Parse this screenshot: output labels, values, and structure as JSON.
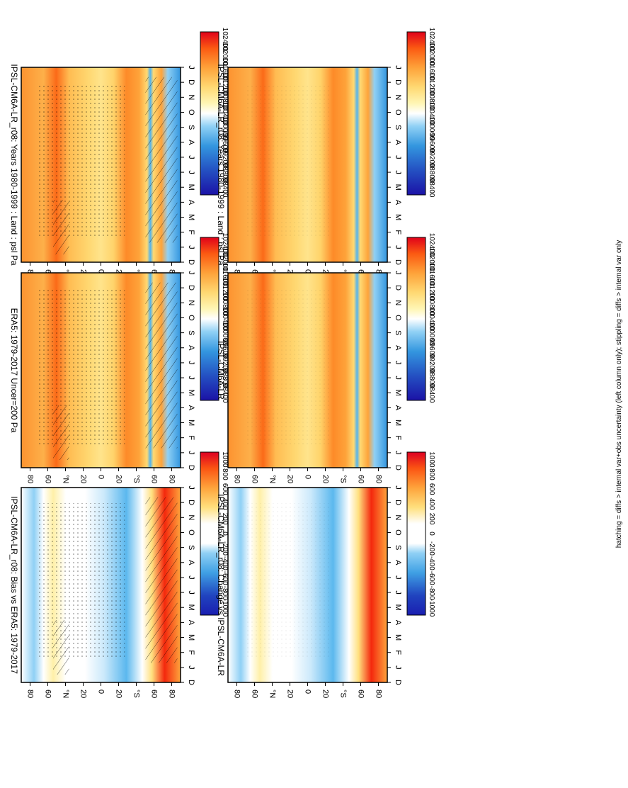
{
  "figure": {
    "footnote": "hatching = diffs > internal var+obs uncertainty (left column only); stippling = diffs > internal var only",
    "orientation_note": "rotated 90deg clockwise"
  },
  "chart_data": [
    {
      "type": "heatmap",
      "title": "IPSL-CM6A-LR_r08: Years 1980-1999 : Land : psl Pa",
      "x_ticks": [
        "D",
        "J",
        "F",
        "M",
        "A",
        "M",
        "J",
        "J",
        "A",
        "S",
        "O",
        "N",
        "D",
        "J"
      ],
      "y_ticks": [
        "80",
        "60",
        "°N",
        "20",
        "0",
        "20",
        "°S",
        "60",
        "80"
      ],
      "colorbar": {
        "labels": [
          "102400",
          "102000",
          "101600",
          "101200",
          "100800",
          "100400",
          "100000",
          "99600",
          "99200",
          "98800",
          "98400"
        ]
      },
      "hatched": true,
      "stippled": true
    },
    {
      "type": "heatmap",
      "title": "IPSL-CM6A-LR_r08: Years 1980-1999 : Land : psl Pa",
      "x_ticks": [
        "D",
        "J",
        "F",
        "M",
        "A",
        "M",
        "J",
        "J",
        "A",
        "S",
        "O",
        "N",
        "D",
        "J"
      ],
      "y_ticks": [
        "80",
        "60",
        "°N",
        "20",
        "0",
        "20",
        "°S",
        "60",
        "80"
      ],
      "colorbar": {
        "labels": [
          "102400",
          "102000",
          "101600",
          "101200",
          "100800",
          "100400",
          "100000",
          "99600",
          "99200",
          "98800",
          "98400"
        ]
      },
      "hatched": false,
      "stippled": true
    },
    {
      "type": "heatmap",
      "title": "ERA5: 1979-2017 Uncer=200 Pa",
      "x_ticks": [
        "D",
        "J",
        "F",
        "M",
        "A",
        "M",
        "J",
        "J",
        "A",
        "S",
        "O",
        "N",
        "D",
        "J"
      ],
      "y_ticks": [
        "80",
        "60",
        "°N",
        "20",
        "0",
        "20",
        "°S",
        "60",
        "80"
      ],
      "colorbar": {
        "labels": [
          "102400",
          "102000",
          "101600",
          "101200",
          "100800",
          "100400",
          "100000",
          "99600",
          "99200",
          "98800",
          "98400"
        ]
      },
      "hatched": true,
      "stippled": true
    },
    {
      "type": "heatmap",
      "title": "IPSL-CM6A-LR",
      "x_ticks": [
        "D",
        "J",
        "F",
        "M",
        "A",
        "M",
        "J",
        "J",
        "A",
        "S",
        "O",
        "N",
        "D",
        "J"
      ],
      "y_ticks": [
        "80",
        "60",
        "°N",
        "20",
        "0",
        "20",
        "°S",
        "60",
        "80"
      ],
      "colorbar": {
        "labels": [
          "102400",
          "102000",
          "101600",
          "101200",
          "100800",
          "100400",
          "100000",
          "99600",
          "99200",
          "98800",
          "98400"
        ]
      },
      "hatched": false,
      "stippled": true
    },
    {
      "type": "heatmap",
      "title": "IPSL-CM6A-LR_r08: Bias vs ERA5: 1979-2017",
      "x_ticks": [
        "D",
        "J",
        "F",
        "M",
        "A",
        "M",
        "J",
        "J",
        "A",
        "S",
        "O",
        "N",
        "D",
        "J"
      ],
      "y_ticks": [
        "80",
        "60",
        "°N",
        "20",
        "0",
        "20",
        "°S",
        "60",
        "80"
      ],
      "colorbar": {
        "labels": [
          "1000",
          "800",
          "600",
          "400",
          "200",
          "0",
          "-200",
          "-400",
          "-600",
          "-800",
          "-1000"
        ]
      },
      "hatched": true,
      "stippled": true
    },
    {
      "type": "heatmap",
      "title": "IPSL-CM6A-LR_r08: Change vs IPSL-CM6A-LR",
      "x_ticks": [
        "D",
        "J",
        "F",
        "M",
        "A",
        "M",
        "J",
        "J",
        "A",
        "S",
        "O",
        "N",
        "D",
        "J"
      ],
      "y_ticks": [
        "80",
        "60",
        "°N",
        "20",
        "0",
        "20",
        "°S",
        "60",
        "80"
      ],
      "colorbar": {
        "labels": [
          "1000",
          "800",
          "600",
          "400",
          "200",
          "0",
          "-200",
          "-400",
          "-600",
          "-800",
          "-1000"
        ]
      },
      "hatched": false,
      "stippled": true
    }
  ],
  "palettes": {
    "psl": [
      "#e0001a",
      "#f32c0d",
      "#fb5a12",
      "#fd8223",
      "#fea33a",
      "#ffc155",
      "#ffd973",
      "#ffea92",
      "#fff6b6",
      "#fffde2",
      "#ffffff",
      "#cfeafb",
      "#8fd0f5",
      "#55b4ec",
      "#3396df",
      "#2b74d0",
      "#2450c2",
      "#1e24b4",
      "#1b12a6"
    ],
    "diff": [
      "#dd0022",
      "#f4280d",
      "#fb5513",
      "#fd7c22",
      "#fea43c",
      "#ffc65a",
      "#ffe07e",
      "#fff0a8",
      "#ffffff",
      "#ffffff",
      "#cbe9fb",
      "#8fd0f5",
      "#5bb8ee",
      "#3fa0e4",
      "#3483d9",
      "#2a63cc",
      "#2044bf",
      "#1a1eb0"
    ]
  }
}
